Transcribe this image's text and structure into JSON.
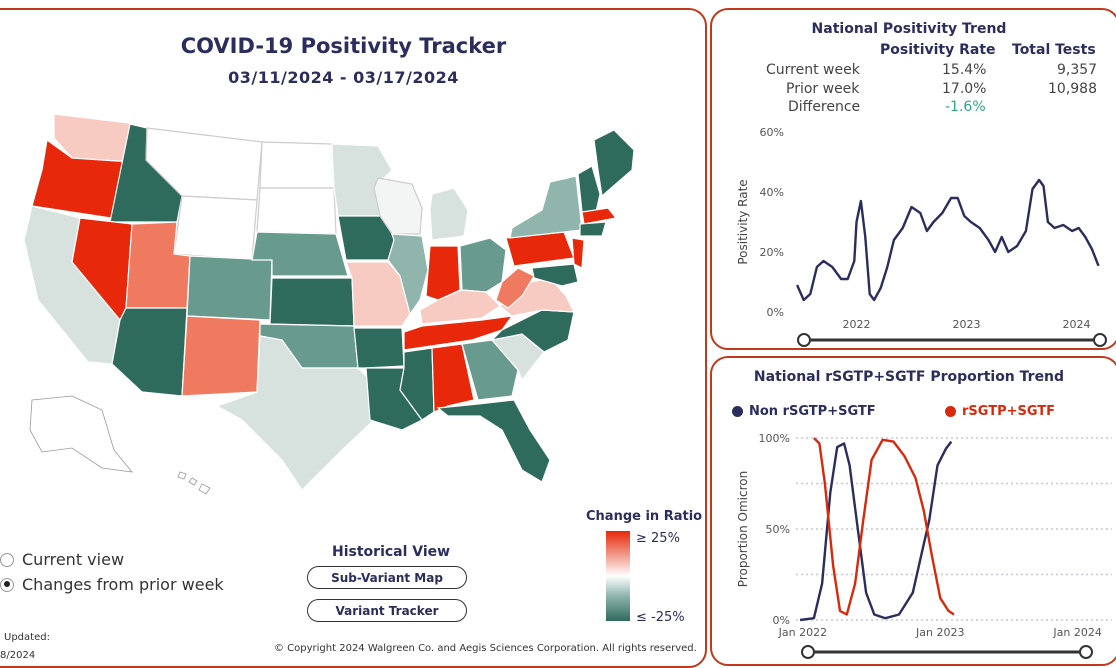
{
  "map_panel": {
    "title": "COVID-19 Positivity Tracker",
    "date_range": "03/11/2024 - 03/17/2024",
    "view_options": [
      {
        "label": "Current view",
        "selected": false
      },
      {
        "label": "Changes from prior week",
        "selected": true
      }
    ],
    "historical_view": {
      "title": "Historical View",
      "buttons": [
        "Sub-Variant Map",
        "Variant Tracker"
      ]
    },
    "legend": {
      "title": "Change in Ratio",
      "max_label": "≥ 25%",
      "min_label": "≤ -25%"
    },
    "updated_label": "Updated:",
    "updated_value": "8/2024",
    "copyright": "© Copyright 2024 Walgreen Co. and Aegis Sciences Corporation. All rights reserved.",
    "colors": {
      "strong_increase": "#e8280a",
      "increase": "#f07a60",
      "slight_increase": "#f7cbc2",
      "neutral": "#ffffff",
      "slight_decrease": "#d7e2df",
      "decrease": "#689a8d",
      "strong_decrease": "#2e6b5c"
    }
  },
  "trend_panel": {
    "title": "National Positivity Trend",
    "headers": [
      "Positivity Rate",
      "Total Tests"
    ],
    "rows": [
      {
        "label": "Current week",
        "rate": "15.4%",
        "tests": "9,357"
      },
      {
        "label": "Prior week",
        "rate": "17.0%",
        "tests": "10,988"
      },
      {
        "label": "Difference",
        "rate": "-1.6%",
        "tests": ""
      }
    ],
    "chart_data": {
      "type": "line",
      "ylabel": "Positivity Rate",
      "xlabel": "",
      "y_ticks": [
        "0%",
        "20%",
        "40%",
        "60%"
      ],
      "ylim": [
        0,
        60
      ],
      "x_ticks": [
        "2022",
        "2023",
        "2024"
      ],
      "xlim": [
        2021.45,
        2024.25
      ],
      "series": [
        {
          "values": [
            [
              2021.46,
              9
            ],
            [
              2021.52,
              4
            ],
            [
              2021.58,
              6
            ],
            [
              2021.64,
              15
            ],
            [
              2021.7,
              17
            ],
            [
              2021.78,
              15
            ],
            [
              2021.86,
              11
            ],
            [
              2021.92,
              11
            ],
            [
              2021.98,
              17
            ],
            [
              2022.0,
              30
            ],
            [
              2022.04,
              37
            ],
            [
              2022.08,
              25
            ],
            [
              2022.12,
              6
            ],
            [
              2022.16,
              4
            ],
            [
              2022.22,
              8
            ],
            [
              2022.28,
              15
            ],
            [
              2022.34,
              24
            ],
            [
              2022.42,
              28
            ],
            [
              2022.5,
              35
            ],
            [
              2022.58,
              33
            ],
            [
              2022.64,
              27
            ],
            [
              2022.7,
              30
            ],
            [
              2022.78,
              33
            ],
            [
              2022.86,
              38
            ],
            [
              2022.92,
              38
            ],
            [
              2022.98,
              32
            ],
            [
              2023.04,
              30
            ],
            [
              2023.12,
              28
            ],
            [
              2023.2,
              24
            ],
            [
              2023.26,
              20
            ],
            [
              2023.32,
              25
            ],
            [
              2023.38,
              20
            ],
            [
              2023.46,
              22
            ],
            [
              2023.54,
              27
            ],
            [
              2023.6,
              41
            ],
            [
              2023.66,
              44
            ],
            [
              2023.7,
              42
            ],
            [
              2023.74,
              30
            ],
            [
              2023.8,
              28
            ],
            [
              2023.88,
              29
            ],
            [
              2023.96,
              27
            ],
            [
              2024.02,
              28
            ],
            [
              2024.08,
              25
            ],
            [
              2024.14,
              21
            ],
            [
              2024.2,
              15.4
            ]
          ],
          "color": "#2b2d5c"
        }
      ]
    }
  },
  "sgtf_panel": {
    "title": "National rSGTP+SGTF Proportion Trend",
    "chart_data": {
      "type": "line",
      "ylabel": "Proportion Omicron",
      "xlabel": "",
      "y_ticks": [
        "0%",
        "50%",
        "100%"
      ],
      "ylim": [
        0,
        100
      ],
      "x_ticks": [
        "Jan 2022",
        "Jan 2023",
        "Jan 2024"
      ],
      "xlim": [
        2021.95,
        2024.25
      ],
      "series": [
        {
          "name": "Non rSGTP+SGTF",
          "color": "#2b2d5c",
          "values": [
            [
              2021.98,
              0
            ],
            [
              2022.08,
              1
            ],
            [
              2022.14,
              20
            ],
            [
              2022.2,
              70
            ],
            [
              2022.25,
              95
            ],
            [
              2022.3,
              97
            ],
            [
              2022.34,
              85
            ],
            [
              2022.4,
              50
            ],
            [
              2022.46,
              15
            ],
            [
              2022.52,
              3
            ],
            [
              2022.6,
              1
            ],
            [
              2022.7,
              3
            ],
            [
              2022.8,
              15
            ],
            [
              2022.86,
              35
            ],
            [
              2022.92,
              55
            ],
            [
              2022.98,
              85
            ],
            [
              2023.04,
              94
            ],
            [
              2023.08,
              98
            ]
          ]
        },
        {
          "name": "rSGTP+SGTF",
          "color": "#d8290c",
          "values": [
            [
              2022.08,
              100
            ],
            [
              2022.12,
              97
            ],
            [
              2022.16,
              75
            ],
            [
              2022.22,
              30
            ],
            [
              2022.27,
              5
            ],
            [
              2022.32,
              3
            ],
            [
              2022.38,
              20
            ],
            [
              2022.44,
              55
            ],
            [
              2022.5,
              88
            ],
            [
              2022.58,
              99
            ],
            [
              2022.66,
              98
            ],
            [
              2022.74,
              90
            ],
            [
              2022.82,
              78
            ],
            [
              2022.88,
              60
            ],
            [
              2022.94,
              35
            ],
            [
              2023.0,
              12
            ],
            [
              2023.06,
              5
            ],
            [
              2023.1,
              3
            ]
          ]
        }
      ]
    }
  }
}
